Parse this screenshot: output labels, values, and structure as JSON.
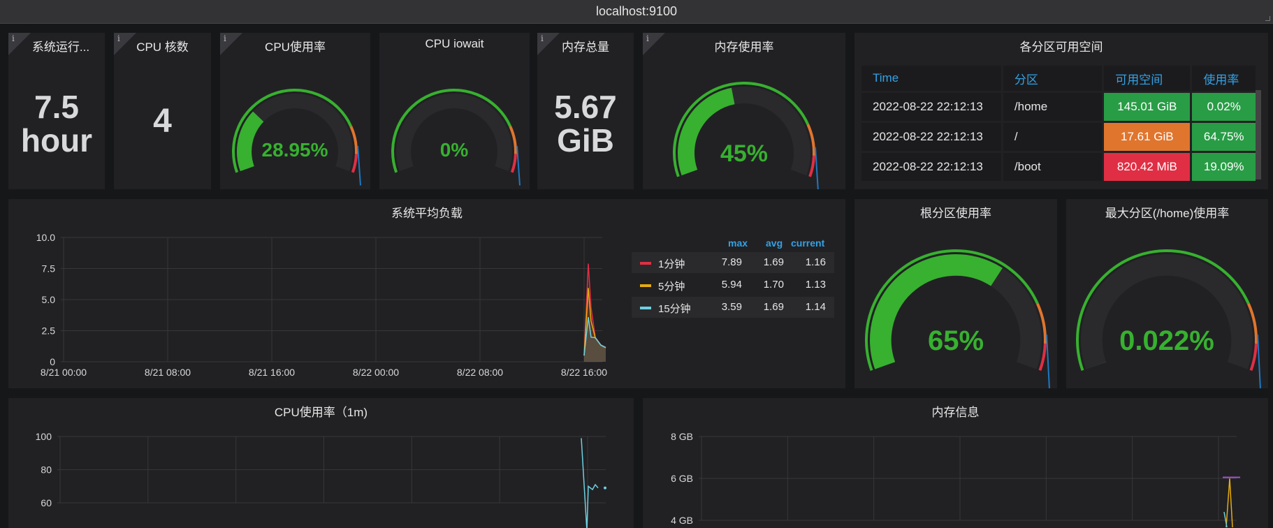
{
  "header": {
    "title": "localhost:9100"
  },
  "panels": {
    "uptime": {
      "title": "系统运行...",
      "value": "7.5",
      "unit": "hour"
    },
    "cpu_cores": {
      "title": "CPU 核数",
      "value": "4"
    },
    "cpu_usage": {
      "title": "CPU使用率",
      "value": "28.95%",
      "fraction": 0.2895
    },
    "cpu_iowait": {
      "title": "CPU iowait",
      "value": "0%",
      "fraction": 0
    },
    "mem_total": {
      "title": "内存总量",
      "value": "5.67",
      "unit": "GiB"
    },
    "mem_usage": {
      "title": "内存使用率",
      "value": "45%",
      "fraction": 0.45
    },
    "partitions": {
      "title": "各分区可用空间",
      "columns": [
        "Time",
        "分区",
        "可用空间",
        "使用率"
      ],
      "rows": [
        {
          "time": "2022-08-22 22:12:13",
          "mount": "/home",
          "free": "145.01 GiB",
          "usage": "0.02%",
          "free_color": "#299c46",
          "usage_color": "#299c46"
        },
        {
          "time": "2022-08-22 22:12:13",
          "mount": "/",
          "free": "17.61 GiB",
          "usage": "64.75%",
          "free_color": "#e0752d",
          "usage_color": "#299c46"
        },
        {
          "time": "2022-08-22 22:12:13",
          "mount": "/boot",
          "free": "820.42 MiB",
          "usage": "19.09%",
          "free_color": "#e02f44",
          "usage_color": "#299c46"
        }
      ]
    },
    "load": {
      "title": "系统平均负载",
      "legend_headers": [
        "max",
        "avg",
        "current"
      ],
      "series": [
        {
          "name": "1分钟",
          "color": "#e02f44",
          "max": "7.89",
          "avg": "1.69",
          "current": "1.16"
        },
        {
          "name": "5分钟",
          "color": "#e5ac0e",
          "max": "5.94",
          "avg": "1.70",
          "current": "1.13"
        },
        {
          "name": "15分钟",
          "color": "#6ed0e0",
          "max": "3.59",
          "avg": "1.69",
          "current": "1.14"
        }
      ]
    },
    "root_usage": {
      "title": "根分区使用率",
      "value": "65%",
      "fraction": 0.65
    },
    "home_usage": {
      "title": "最大分区(/home)使用率",
      "value": "0.022%",
      "fraction": 0.00022
    },
    "cpu_1m": {
      "title": "CPU使用率（1m)"
    },
    "mem_info": {
      "title": "内存信息"
    }
  },
  "chart_data": [
    {
      "type": "line",
      "title": "系统平均负载",
      "x_ticks": [
        "8/21 00:00",
        "8/21 08:00",
        "8/21 16:00",
        "8/22 00:00",
        "8/22 08:00",
        "8/22 16:00"
      ],
      "y_ticks": [
        "0",
        "2.5",
        "5.0",
        "7.5",
        "10.0"
      ],
      "ylim": [
        0,
        10
      ],
      "series": [
        {
          "name": "1分钟",
          "peak": 7.89,
          "current": 1.16
        },
        {
          "name": "5分钟",
          "peak": 5.94,
          "current": 1.13
        },
        {
          "name": "15分钟",
          "peak": 3.59,
          "current": 1.14
        }
      ]
    },
    {
      "type": "line",
      "title": "CPU使用率（1m)",
      "y_ticks": [
        "60",
        "80",
        "100"
      ],
      "ylim": [
        50,
        100
      ],
      "series": [
        {
          "peak": 99
        }
      ]
    },
    {
      "type": "line",
      "title": "内存信息",
      "y_ticks": [
        "4 GB",
        "6 GB",
        "8 GB"
      ]
    }
  ]
}
